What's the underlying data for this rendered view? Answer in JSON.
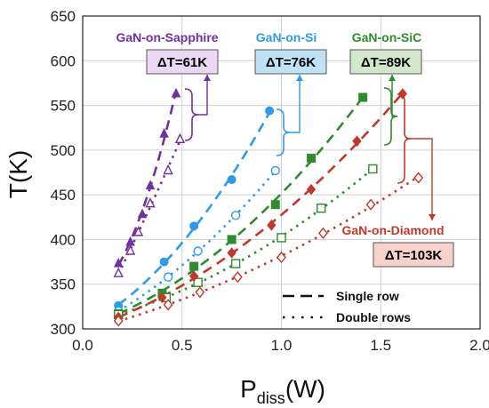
{
  "chart_data": {
    "type": "scatter",
    "xlabel": "P",
    "xlabel_sub": "diss",
    "xlabel_unit": "(W)",
    "ylabel": "T(K)",
    "xlim": [
      0.0,
      2.0
    ],
    "ylim": [
      300,
      650
    ],
    "x_ticks": [
      "0.0",
      "0.5",
      "1.0",
      "1.5",
      "2.0"
    ],
    "y_ticks": [
      "300",
      "350",
      "400",
      "450",
      "500",
      "550",
      "600",
      "650"
    ],
    "grid": true,
    "legend": {
      "placement": "bottom-right",
      "items": [
        {
          "label": "Single row",
          "style": "dashed"
        },
        {
          "label": "Double rows",
          "style": "dotted"
        }
      ]
    },
    "series": [
      {
        "name": "GaN-on-Sapphire",
        "color": "#7030a0",
        "delta_label": "ΔT=61K",
        "marker": "triangle",
        "single_row": [
          [
            0.18,
            373
          ],
          [
            0.24,
            397
          ],
          [
            0.3,
            428
          ],
          [
            0.34,
            460
          ],
          [
            0.41,
            518
          ],
          [
            0.47,
            563
          ]
        ],
        "double_rows": [
          [
            0.18,
            362
          ],
          [
            0.24,
            387
          ],
          [
            0.28,
            408
          ],
          [
            0.34,
            440
          ],
          [
            0.43,
            477
          ],
          [
            0.49,
            512
          ]
        ]
      },
      {
        "name": "GaN-on-Si",
        "color": "#2e9be6",
        "delta_label": "ΔT=76K",
        "marker": "circle",
        "single_row": [
          [
            0.18,
            326
          ],
          [
            0.41,
            375
          ],
          [
            0.56,
            415
          ],
          [
            0.75,
            467
          ],
          [
            0.94,
            544
          ]
        ],
        "double_rows": [
          [
            0.18,
            320
          ],
          [
            0.43,
            358
          ],
          [
            0.58,
            387
          ],
          [
            0.77,
            427
          ],
          [
            0.97,
            477
          ]
        ]
      },
      {
        "name": "GaN-on-SiC",
        "color": "#2e8b2e",
        "delta_label": "ΔT=89K",
        "marker": "square",
        "single_row": [
          [
            0.18,
            317
          ],
          [
            0.4,
            340
          ],
          [
            0.56,
            370
          ],
          [
            0.75,
            400
          ],
          [
            0.97,
            439
          ],
          [
            1.15,
            491
          ],
          [
            1.41,
            559
          ]
        ],
        "double_rows": [
          [
            0.18,
            316
          ],
          [
            0.42,
            335
          ],
          [
            0.58,
            352
          ],
          [
            0.77,
            373
          ],
          [
            1.0,
            402
          ],
          [
            1.2,
            435
          ],
          [
            1.46,
            479
          ]
        ]
      },
      {
        "name": "GaN-on-Diamond",
        "color": "#c0392b",
        "delta_label": "ΔT=103K",
        "marker": "diamond",
        "single_row": [
          [
            0.18,
            313
          ],
          [
            0.4,
            335
          ],
          [
            0.56,
            359
          ],
          [
            0.75,
            385
          ],
          [
            0.95,
            416
          ],
          [
            1.15,
            456
          ],
          [
            1.38,
            510
          ],
          [
            1.61,
            563
          ]
        ],
        "double_rows": [
          [
            0.18,
            309
          ],
          [
            0.43,
            327
          ],
          [
            0.59,
            341
          ],
          [
            0.78,
            358
          ],
          [
            1.0,
            380
          ],
          [
            1.21,
            407
          ],
          [
            1.45,
            439
          ],
          [
            1.69,
            469
          ]
        ]
      }
    ]
  }
}
